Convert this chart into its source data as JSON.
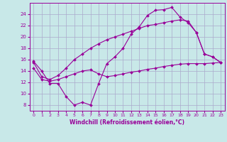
{
  "background_color": "#c8e8e8",
  "grid_color": "#aaaacc",
  "line_color": "#990099",
  "marker": "D",
  "marker_size": 2,
  "xlim": [
    -0.5,
    23.5
  ],
  "ylim": [
    7,
    26
  ],
  "xticks": [
    0,
    1,
    2,
    3,
    4,
    5,
    6,
    7,
    8,
    9,
    10,
    11,
    12,
    13,
    14,
    15,
    16,
    17,
    18,
    19,
    20,
    21,
    22,
    23
  ],
  "yticks": [
    8,
    10,
    12,
    14,
    16,
    18,
    20,
    22,
    24
  ],
  "xlabel": "Windchill (Refroidissement éolien,°C)",
  "line1_x": [
    0,
    1,
    2,
    3,
    4,
    5,
    6,
    7,
    8,
    9,
    10,
    11,
    12,
    13,
    14,
    15,
    16,
    17,
    18,
    19,
    20,
    21,
    22,
    23
  ],
  "line1_y": [
    15.7,
    14.0,
    11.8,
    11.8,
    9.5,
    8.0,
    8.5,
    8.0,
    11.8,
    15.3,
    16.5,
    18.0,
    20.5,
    21.8,
    23.8,
    24.7,
    24.8,
    25.2,
    23.5,
    22.5,
    20.8,
    17.0,
    16.5,
    15.5
  ],
  "line2_x": [
    0,
    1,
    2,
    3,
    4,
    5,
    6,
    7,
    8,
    9,
    10,
    11,
    12,
    13,
    14,
    15,
    16,
    17,
    18,
    19,
    20,
    21,
    22,
    23
  ],
  "line2_y": [
    15.5,
    13.0,
    12.5,
    13.2,
    14.5,
    16.0,
    17.0,
    18.0,
    18.8,
    19.5,
    20.0,
    20.5,
    21.0,
    21.5,
    22.0,
    22.2,
    22.5,
    22.8,
    23.0,
    22.8,
    20.8,
    17.0,
    16.5,
    15.5
  ],
  "line3_x": [
    0,
    1,
    2,
    3,
    4,
    5,
    6,
    7,
    8,
    9,
    10,
    11,
    12,
    13,
    14,
    15,
    16,
    17,
    18,
    19,
    20,
    21,
    22,
    23
  ],
  "line3_y": [
    14.5,
    12.5,
    12.2,
    12.5,
    13.0,
    13.5,
    14.0,
    14.2,
    13.5,
    13.0,
    13.2,
    13.5,
    13.8,
    14.0,
    14.3,
    14.5,
    14.8,
    15.0,
    15.2,
    15.3,
    15.3,
    15.3,
    15.4,
    15.5
  ]
}
